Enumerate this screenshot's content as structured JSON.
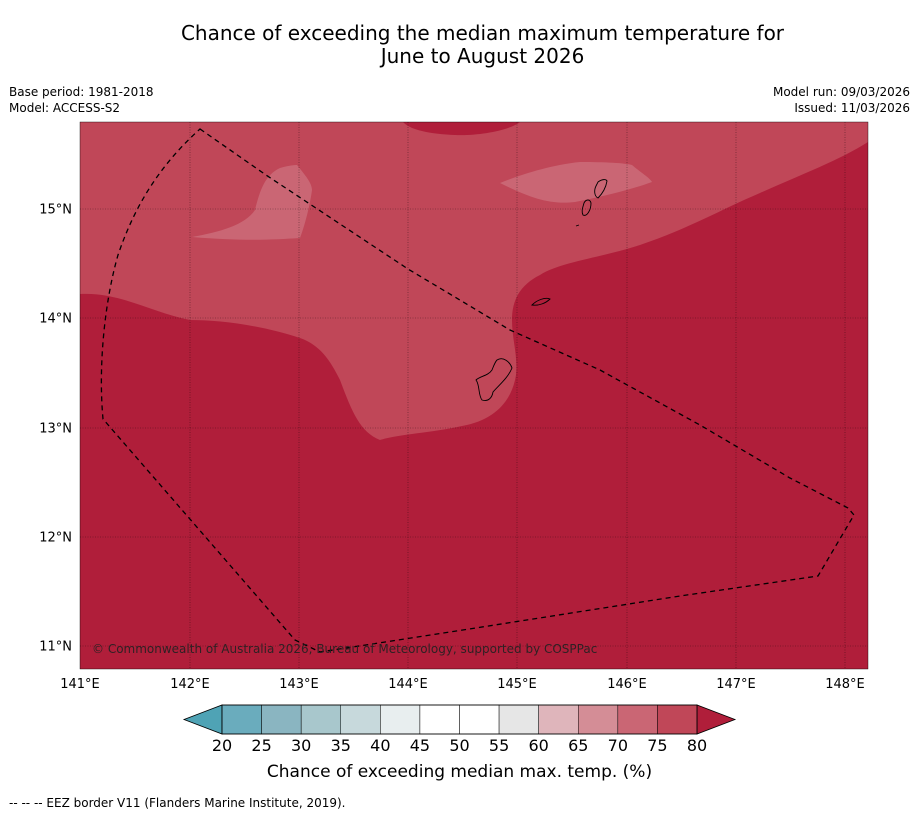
{
  "title": {
    "line1": "Chance of exceeding the median maximum temperature for",
    "line2": "June to August 2026"
  },
  "meta": {
    "base_period": "Base period: 1981-2018",
    "model": "Model: ACCESS-S2",
    "model_run": "Model run: 09/03/2026",
    "issued": "Issued: 11/03/2026"
  },
  "copyright": "© Commonwealth of Australia 2026, Bureau of Meteorology, supported by COSPPac",
  "longitude_ticks": [
    "141°E",
    "142°E",
    "143°E",
    "144°E",
    "145°E",
    "146°E",
    "147°E",
    "148°E"
  ],
  "latitude_ticks": [
    "15°N",
    "14°N",
    "13°N",
    "12°N",
    "11°N"
  ],
  "legend": {
    "ticks": [
      "20",
      "25",
      "30",
      "35",
      "40",
      "45",
      "50",
      "55",
      "60",
      "65",
      "70",
      "75",
      "80"
    ],
    "colors": [
      "#6aacbd",
      "#8ab5c1",
      "#a8c7cc",
      "#c7d9dc",
      "#e8eeef",
      "#ffffff",
      "#ffffff",
      "#e6e6e6",
      "#dfb5bb",
      "#d48d96",
      "#ca6674",
      "#c04758"
    ],
    "under_color": "#4fa3b5",
    "over_color": "#b01e3a",
    "title": "Chance of exceeding median max. temp. (%)"
  },
  "map_colors": {
    "band_80_plus": "#b01e3a",
    "band_75_80": "#c04758",
    "band_70_75": "#ca6674"
  },
  "footnote": "--  --  -- EEZ border V11 (Flanders Marine Institute, 2019)."
}
